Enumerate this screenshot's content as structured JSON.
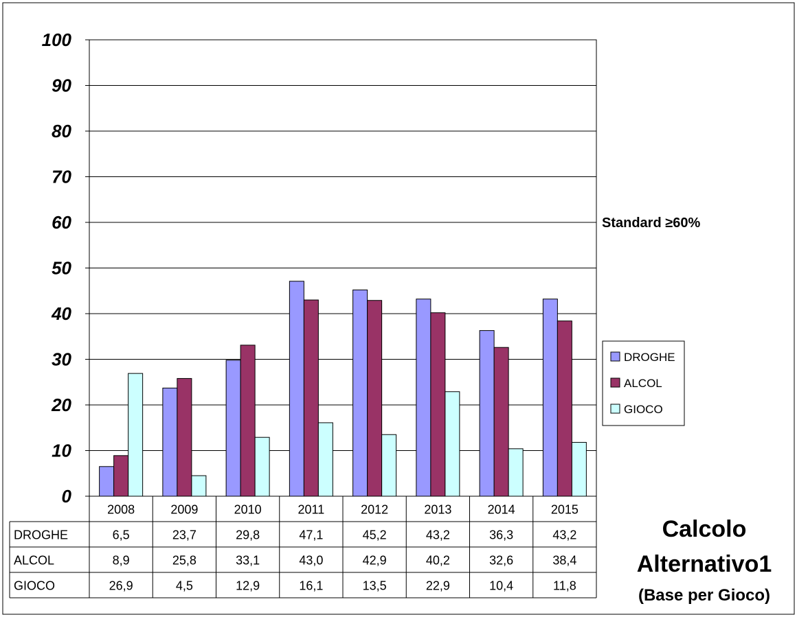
{
  "chart_data": {
    "type": "bar",
    "categories": [
      "2008",
      "2009",
      "2010",
      "2011",
      "2012",
      "2013",
      "2014",
      "2015"
    ],
    "series": [
      {
        "name": "DROGHE",
        "color": "#9999ff",
        "values": [
          6.5,
          23.7,
          29.8,
          47.1,
          45.2,
          43.2,
          36.3,
          43.2
        ],
        "labels": [
          "6,5",
          "23,7",
          "29,8",
          "47,1",
          "45,2",
          "43,2",
          "36,3",
          "43,2"
        ]
      },
      {
        "name": "ALCOL",
        "color": "#993366",
        "values": [
          8.9,
          25.8,
          33.1,
          43.0,
          42.9,
          40.2,
          32.6,
          38.4
        ],
        "labels": [
          "8,9",
          "25,8",
          "33,1",
          "43,0",
          "42,9",
          "40,2",
          "32,6",
          "38,4"
        ]
      },
      {
        "name": "GIOCO",
        "color": "#ccffff",
        "values": [
          26.9,
          4.5,
          12.9,
          16.1,
          13.5,
          22.9,
          10.4,
          11.8
        ],
        "labels": [
          "26,9",
          "4,5",
          "12,9",
          "16,1",
          "13,5",
          "22,9",
          "10,4",
          "11,8"
        ]
      }
    ],
    "yticks": [
      "0",
      "10",
      "20",
      "30",
      "40",
      "50",
      "60",
      "70",
      "80",
      "90",
      "100"
    ],
    "ylim": [
      0,
      100
    ],
    "grid": true,
    "legend": "right",
    "annotation": "Standard ≥60%",
    "title_lines": [
      "Calcolo",
      "Alternativo1",
      "(Base per Gioco)"
    ]
  }
}
